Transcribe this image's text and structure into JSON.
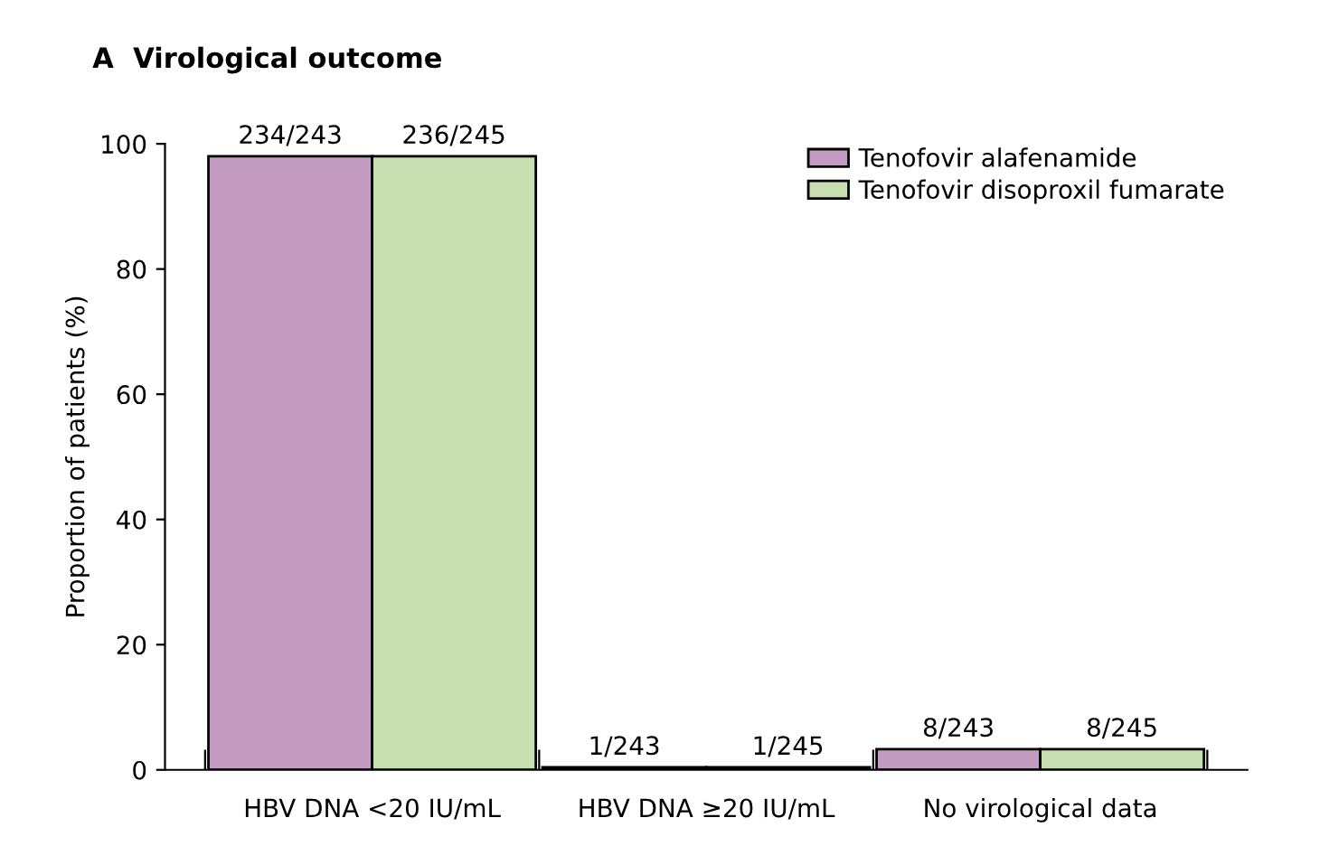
{
  "chart_data": {
    "type": "bar",
    "title": "A  Virological outcome",
    "ylabel": "Proportion of patients (%)",
    "categories": [
      "HBV DNA <20 IU/mL",
      "HBV DNA ≥20 IU/mL",
      "No virological data"
    ],
    "series": [
      {
        "name": "Tenofovir alafenamide",
        "color": "#c49cc2",
        "values": [
          98,
          0.4,
          3.3
        ],
        "value_labels": [
          "234/243",
          "1/243",
          "8/243"
        ]
      },
      {
        "name": "Tenofovir disoproxil fumarate",
        "color": "#c6deb0",
        "values": [
          98,
          0.4,
          3.3
        ],
        "value_labels": [
          "236/245",
          "1/245",
          "8/245"
        ]
      }
    ],
    "ylim": [
      0,
      100
    ],
    "yticks": [
      0,
      20,
      40,
      60,
      80,
      100
    ],
    "grid": false,
    "legend": "top right"
  }
}
